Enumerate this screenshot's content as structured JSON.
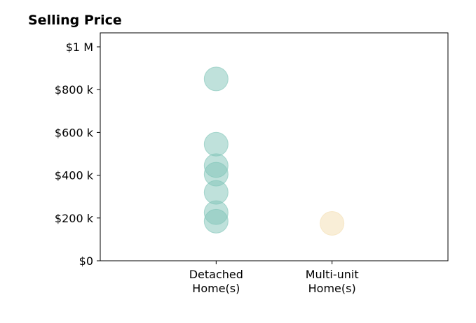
{
  "chart_data": {
    "type": "scatter",
    "title": "Selling Price",
    "xlabel": "",
    "ylabel": "",
    "categories": [
      {
        "label_lines": [
          "Detached",
          "Home(s)"
        ],
        "color": "#7fc4b8"
      },
      {
        "label_lines": [
          "Multi-unit",
          "Home(s)"
        ],
        "color": "#f3ddb0"
      }
    ],
    "xlim": [
      0,
      3
    ],
    "ylim": [
      0,
      1000000
    ],
    "yticks": [
      {
        "value": 0,
        "label": "$0"
      },
      {
        "value": 200000,
        "label": "$200 k"
      },
      {
        "value": 400000,
        "label": "$400 k"
      },
      {
        "value": 600000,
        "label": "$600 k"
      },
      {
        "value": 800000,
        "label": "$800 k"
      },
      {
        "value": 1000000,
        "label": "$1 M"
      }
    ],
    "series": [
      {
        "category": 0,
        "values": [
          850000,
          545000,
          445000,
          405000,
          320000,
          225000,
          185000
        ]
      },
      {
        "category": 1,
        "values": [
          175000
        ]
      }
    ],
    "grid": false,
    "legend": "none"
  }
}
